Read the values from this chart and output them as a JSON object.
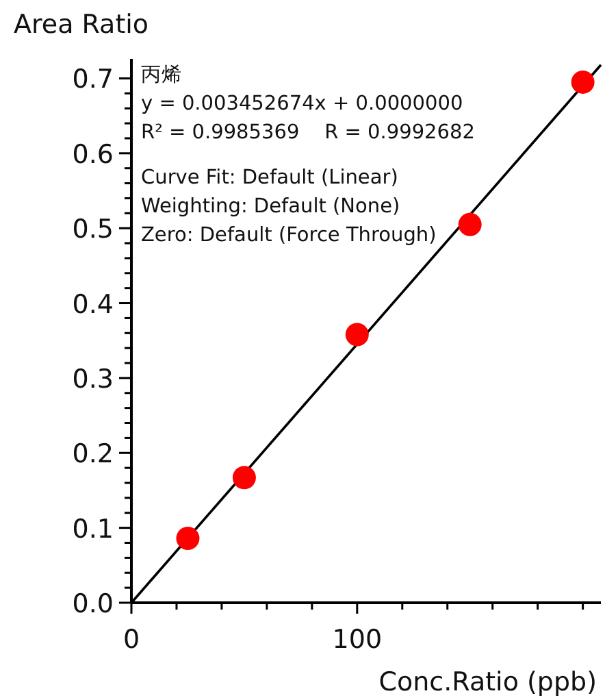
{
  "chart_data": {
    "type": "scatter",
    "xlabel": "Conc.Ratio (ppb)",
    "ylabel": "Area Ratio",
    "annotations": [
      "丙烯",
      "y = 0.003452674x + 0.0000000",
      "R² = 0.9985369    R = 0.9992682",
      "Curve Fit: Default (Linear)",
      "Weighting: Default (None)",
      "Zero: Default (Force Through)"
    ],
    "xlim": [
      0,
      208
    ],
    "ylim": [
      0,
      0.726
    ],
    "xticks": [
      0,
      {
        "value": 20,
        "label": null
      },
      {
        "value": 40,
        "label": null
      },
      {
        "value": 60,
        "label": null
      },
      {
        "value": 80,
        "label": null
      },
      100,
      {
        "value": 120,
        "label": null
      },
      {
        "value": 140,
        "label": null
      },
      {
        "value": 160,
        "label": null
      },
      {
        "value": 180,
        "label": null
      },
      {
        "value": 200,
        "label": null
      }
    ],
    "yticks": [
      {
        "value": 0,
        "label": "0.0"
      },
      0.1,
      0.2,
      0.3,
      0.4,
      0.5,
      0.6,
      0.7
    ],
    "series": [
      {
        "color": "#ff0000",
        "marker": "circle",
        "x": [
          25,
          50,
          100,
          150,
          200
        ],
        "values": [
          0.086,
          0.167,
          0.358,
          0.505,
          0.695
        ]
      },
      {
        "type": "line",
        "color": "#000000",
        "marker": "none",
        "x": [
          0,
          208
        ],
        "values": [
          0,
          0.718
        ]
      }
    ]
  }
}
